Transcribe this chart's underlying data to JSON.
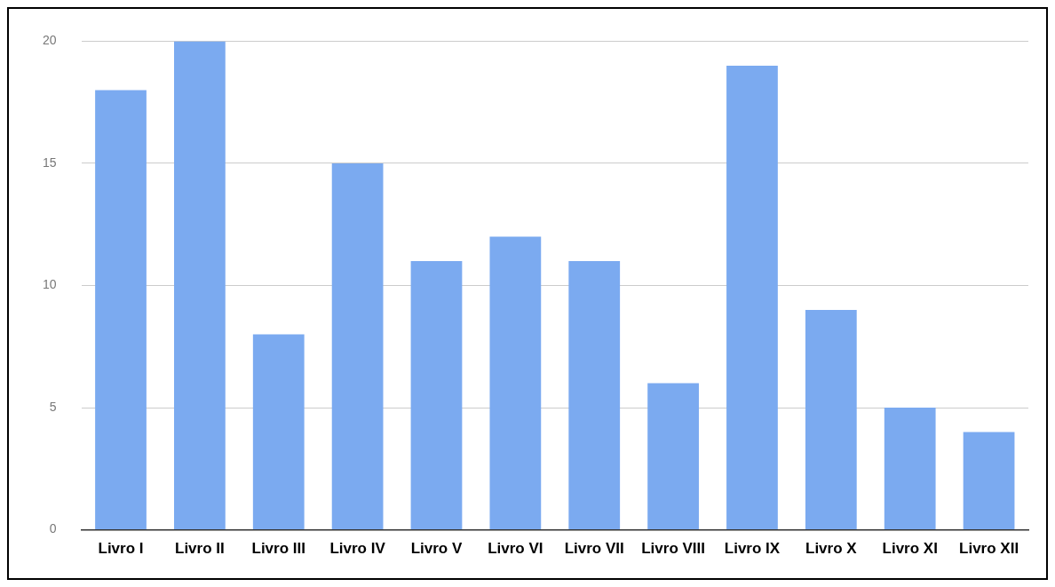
{
  "chart_data": {
    "type": "bar",
    "categories": [
      "Livro I",
      "Livro II",
      "Livro III",
      "Livro IV",
      "Livro V",
      "Livro VI",
      "Livro VII",
      "Livro VIII",
      "Livro IX",
      "Livro X",
      "Livro XI",
      "Livro XII"
    ],
    "values": [
      18,
      20,
      8,
      15,
      11,
      12,
      11,
      6,
      19,
      9,
      5,
      4
    ],
    "color": "#7baaf0",
    "ylim": [
      0,
      20
    ],
    "yticks": [
      0,
      5,
      10,
      15,
      20
    ],
    "grid": "y"
  }
}
